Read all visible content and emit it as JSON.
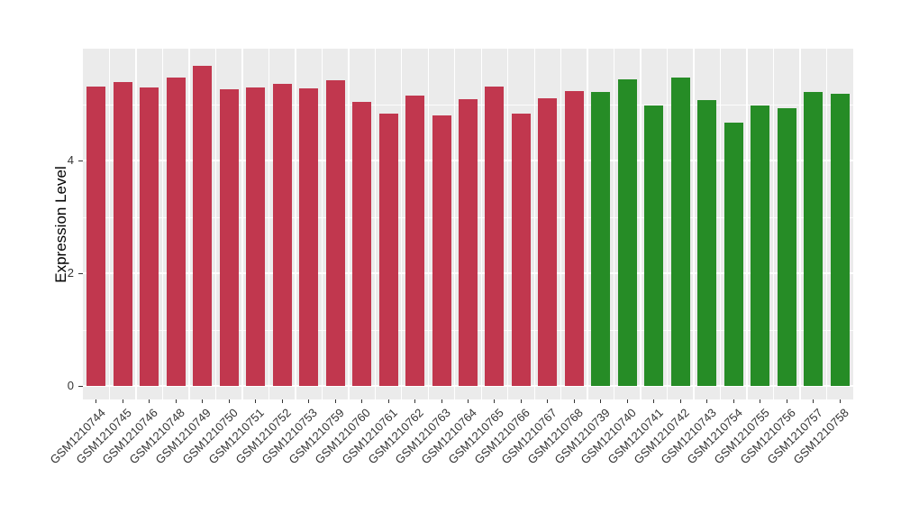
{
  "figure": {
    "panel_background": "#EBEBEB",
    "grid_color": "#FFFFFF",
    "tick_color": "#333333",
    "tick_label_color": "#333333",
    "axis_title_color": "#000000"
  },
  "chart_data": {
    "type": "bar",
    "title": "",
    "xlabel": "",
    "ylabel": "Expression Level",
    "legend": "none",
    "grid": "on",
    "ylim": [
      0,
      5.95
    ],
    "yticks": [
      0,
      2,
      4
    ],
    "ytick_labels": [
      "0",
      "2",
      "4"
    ],
    "minor_yticks": [
      1,
      3,
      5
    ],
    "categories": [
      "GSM1210744",
      "GSM1210745",
      "GSM1210746",
      "GSM1210748",
      "GSM1210749",
      "GSM1210750",
      "GSM1210751",
      "GSM1210752",
      "GSM1210753",
      "GSM1210759",
      "GSM1210760",
      "GSM1210761",
      "GSM1210762",
      "GSM1210763",
      "GSM1210764",
      "GSM1210765",
      "GSM1210766",
      "GSM1210767",
      "GSM1210768",
      "GSM1210739",
      "GSM1210740",
      "GSM1210741",
      "GSM1210742",
      "GSM1210743",
      "GSM1210754",
      "GSM1210755",
      "GSM1210756",
      "GSM1210757",
      "GSM1210758"
    ],
    "values": [
      5.32,
      5.39,
      5.29,
      5.47,
      5.68,
      5.27,
      5.29,
      5.36,
      5.28,
      5.43,
      5.04,
      4.83,
      5.16,
      4.8,
      5.09,
      5.31,
      4.83,
      5.1,
      5.24,
      5.22,
      5.44,
      4.98,
      5.47,
      5.08,
      4.68,
      4.98,
      4.93,
      5.21,
      5.19
    ],
    "bar_groups": [
      "red",
      "red",
      "red",
      "red",
      "red",
      "red",
      "red",
      "red",
      "red",
      "red",
      "red",
      "red",
      "red",
      "red",
      "red",
      "red",
      "red",
      "red",
      "red",
      "green",
      "green",
      "green",
      "green",
      "green",
      "green",
      "green",
      "green",
      "green",
      "green"
    ],
    "palette": {
      "red": "#C1374E",
      "green": "#268C26"
    }
  }
}
